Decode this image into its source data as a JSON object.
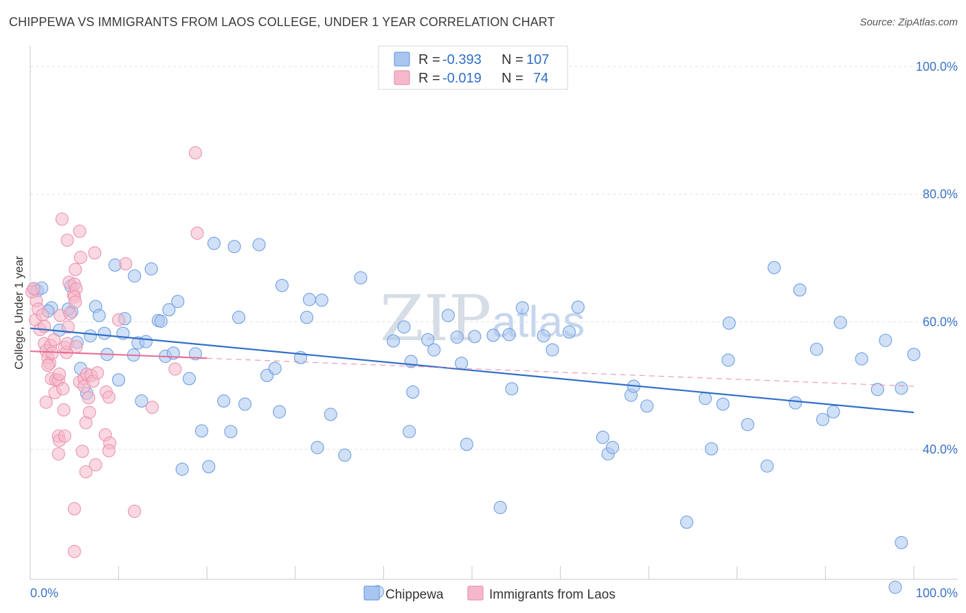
{
  "title": "CHIPPEWA VS IMMIGRANTS FROM LAOS COLLEGE, UNDER 1 YEAR CORRELATION CHART",
  "source": "Source: ZipAtlas.com",
  "watermark": {
    "zip": "ZIP",
    "atlas": "atlas"
  },
  "legend": {
    "rows": [
      {
        "r_label": "R =",
        "r_value": "-0.393",
        "n_label": "N =",
        "n_value": "107",
        "color": "#a9c6f0"
      },
      {
        "r_label": "R =",
        "r_value": "-0.019",
        "n_label": "N =",
        "n_value": "74",
        "color": "#f5b8cb"
      }
    ]
  },
  "bottom_legend": [
    {
      "label": "Chippewa",
      "color": "#a9c6f0"
    },
    {
      "label": "Immigrants from Laos",
      "color": "#f5b8cb"
    }
  ],
  "chart_data": {
    "type": "scatter",
    "title": "CHIPPEWA VS IMMIGRANTS FROM LAOS COLLEGE, UNDER 1 YEAR CORRELATION CHART",
    "xlabel": "",
    "ylabel": "College, Under 1 year",
    "xlim": [
      0,
      100
    ],
    "ylim": [
      12,
      104
    ],
    "x_tick_labels": [
      "0.0%",
      "100.0%"
    ],
    "y_ticks": [
      40,
      60,
      80,
      100
    ],
    "y_tick_labels": [
      "40.0%",
      "60.0%",
      "80.0%",
      "100.0%"
    ],
    "grid": "horizontal dashed",
    "legend_position": "top-center",
    "series": [
      {
        "name": "Chippewa",
        "color": "#a9c6f0",
        "stroke": "#6f9fe0",
        "trend": {
          "x": [
            0,
            100
          ],
          "y": [
            59.0,
            45.8
          ],
          "color": "#2f6ec8"
        },
        "points": [
          [
            0.4,
            65.2
          ],
          [
            0.8,
            64.9
          ],
          [
            1.3,
            65.3
          ],
          [
            4.6,
            65.6
          ],
          [
            2.4,
            62.2
          ],
          [
            2.0,
            61.7
          ],
          [
            4.7,
            61.6
          ],
          [
            4.3,
            62.0
          ],
          [
            3.3,
            58.7
          ],
          [
            5.3,
            56.8
          ],
          [
            5.7,
            52.7
          ],
          [
            6.4,
            48.8
          ],
          [
            6.8,
            57.8
          ],
          [
            7.4,
            62.4
          ],
          [
            7.8,
            61.0
          ],
          [
            8.4,
            58.2
          ],
          [
            8.7,
            54.9
          ],
          [
            9.6,
            68.9
          ],
          [
            10.0,
            50.9
          ],
          [
            10.5,
            58.2
          ],
          [
            10.7,
            60.5
          ],
          [
            11.7,
            54.8
          ],
          [
            11.8,
            67.2
          ],
          [
            12.2,
            56.7
          ],
          [
            12.6,
            47.6
          ],
          [
            13.1,
            56.9
          ],
          [
            13.7,
            68.3
          ],
          [
            14.5,
            60.2
          ],
          [
            14.8,
            60.1
          ],
          [
            15.3,
            54.6
          ],
          [
            15.7,
            61.9
          ],
          [
            16.2,
            55.1
          ],
          [
            16.7,
            63.2
          ],
          [
            17.2,
            36.9
          ],
          [
            18.0,
            51.1
          ],
          [
            18.7,
            55.0
          ],
          [
            19.4,
            42.9
          ],
          [
            20.2,
            37.3
          ],
          [
            20.8,
            72.3
          ],
          [
            21.9,
            47.6
          ],
          [
            22.7,
            42.8
          ],
          [
            23.1,
            71.8
          ],
          [
            23.6,
            60.7
          ],
          [
            24.3,
            47.1
          ],
          [
            25.9,
            72.1
          ],
          [
            26.8,
            51.6
          ],
          [
            27.7,
            52.7
          ],
          [
            28.2,
            45.9
          ],
          [
            28.5,
            65.7
          ],
          [
            30.6,
            54.4
          ],
          [
            31.3,
            60.7
          ],
          [
            31.6,
            63.5
          ],
          [
            32.5,
            40.3
          ],
          [
            33.0,
            63.4
          ],
          [
            34.0,
            45.5
          ],
          [
            35.6,
            39.1
          ],
          [
            37.4,
            66.9
          ],
          [
            39.3,
            17.7
          ],
          [
            41.1,
            57.0
          ],
          [
            42.3,
            59.2
          ],
          [
            42.9,
            42.8
          ],
          [
            43.1,
            53.8
          ],
          [
            43.3,
            49.0
          ],
          [
            45.0,
            57.2
          ],
          [
            45.7,
            55.6
          ],
          [
            47.3,
            61.0
          ],
          [
            48.3,
            57.6
          ],
          [
            48.8,
            53.5
          ],
          [
            49.4,
            40.8
          ],
          [
            50.3,
            57.7
          ],
          [
            52.4,
            57.9
          ],
          [
            53.2,
            30.9
          ],
          [
            54.2,
            58.0
          ],
          [
            54.5,
            49.5
          ],
          [
            55.7,
            62.2
          ],
          [
            58.1,
            57.8
          ],
          [
            59.1,
            55.6
          ],
          [
            61.0,
            58.4
          ],
          [
            62.0,
            62.3
          ],
          [
            64.8,
            41.9
          ],
          [
            65.4,
            39.3
          ],
          [
            65.9,
            40.3
          ],
          [
            68.0,
            48.5
          ],
          [
            68.3,
            49.9
          ],
          [
            69.8,
            46.8
          ],
          [
            74.3,
            28.6
          ],
          [
            76.4,
            48.0
          ],
          [
            77.1,
            40.1
          ],
          [
            78.4,
            47.1
          ],
          [
            79.0,
            54.0
          ],
          [
            79.1,
            59.8
          ],
          [
            81.2,
            43.9
          ],
          [
            83.4,
            37.4
          ],
          [
            84.2,
            68.5
          ],
          [
            86.6,
            47.3
          ],
          [
            87.1,
            65.0
          ],
          [
            89.0,
            55.7
          ],
          [
            89.7,
            44.7
          ],
          [
            90.9,
            45.9
          ],
          [
            91.7,
            59.9
          ],
          [
            94.1,
            54.2
          ],
          [
            95.9,
            49.4
          ],
          [
            96.8,
            57.1
          ],
          [
            98.6,
            25.4
          ],
          [
            98.6,
            49.6
          ],
          [
            97.9,
            18.4
          ],
          [
            100.0,
            54.9
          ]
        ]
      },
      {
        "name": "Immigrants from Laos",
        "color": "#f5b8cb",
        "stroke": "#e993ae",
        "trend": {
          "x": [
            0,
            20
          ],
          "y": [
            55.4,
            54.3
          ],
          "dashed_to": [
            100,
            49.9
          ],
          "color": "#e86f96"
        },
        "points": [
          [
            0.2,
            64.7
          ],
          [
            0.4,
            65.2
          ],
          [
            0.7,
            63.3
          ],
          [
            0.6,
            60.3
          ],
          [
            0.9,
            62.0
          ],
          [
            1.1,
            58.8
          ],
          [
            1.4,
            61.1
          ],
          [
            1.6,
            59.3
          ],
          [
            1.6,
            56.6
          ],
          [
            1.8,
            55.5
          ],
          [
            2.0,
            54.4
          ],
          [
            2.2,
            53.5
          ],
          [
            2.3,
            56.3
          ],
          [
            2.4,
            51.1
          ],
          [
            2.5,
            55.1
          ],
          [
            2.7,
            57.2
          ],
          [
            2.8,
            48.9
          ],
          [
            2.9,
            50.9
          ],
          [
            3.2,
            42.1
          ],
          [
            3.2,
            50.9
          ],
          [
            3.2,
            39.3
          ],
          [
            3.3,
            41.4
          ],
          [
            3.4,
            61.0
          ],
          [
            3.6,
            76.1
          ],
          [
            3.7,
            49.5
          ],
          [
            3.8,
            46.2
          ],
          [
            3.9,
            42.1
          ],
          [
            3.9,
            56.0
          ],
          [
            4.1,
            55.2
          ],
          [
            4.2,
            56.6
          ],
          [
            4.4,
            66.2
          ],
          [
            4.2,
            72.8
          ],
          [
            4.3,
            59.2
          ],
          [
            4.5,
            61.3
          ],
          [
            4.9,
            64.3
          ],
          [
            5.1,
            68.2
          ],
          [
            5.0,
            65.9
          ],
          [
            5.2,
            65.2
          ],
          [
            5.0,
            63.9
          ],
          [
            5.0,
            30.7
          ],
          [
            5.0,
            24.0
          ],
          [
            5.1,
            63.1
          ],
          [
            5.2,
            56.1
          ],
          [
            5.6,
            50.6
          ],
          [
            5.6,
            74.2
          ],
          [
            5.7,
            70.1
          ],
          [
            5.9,
            39.7
          ],
          [
            6.1,
            51.1
          ],
          [
            6.1,
            49.9
          ],
          [
            6.4,
            51.8
          ],
          [
            6.3,
            44.2
          ],
          [
            6.3,
            36.5
          ],
          [
            6.7,
            45.8
          ],
          [
            6.9,
            51.6
          ],
          [
            7.1,
            50.7
          ],
          [
            7.3,
            70.8
          ],
          [
            7.4,
            37.6
          ],
          [
            7.6,
            52.0
          ],
          [
            8.6,
            49.0
          ],
          [
            8.5,
            42.3
          ],
          [
            8.9,
            48.2
          ],
          [
            9.0,
            41.0
          ],
          [
            8.9,
            39.8
          ],
          [
            10.0,
            60.3
          ],
          [
            10.8,
            69.1
          ],
          [
            11.8,
            30.3
          ],
          [
            13.8,
            46.6
          ],
          [
            16.4,
            52.6
          ],
          [
            18.7,
            86.5
          ],
          [
            18.9,
            73.9
          ],
          [
            1.8,
            47.4
          ],
          [
            3.3,
            51.8
          ],
          [
            2.0,
            53.2
          ],
          [
            6.6,
            48.1
          ]
        ]
      }
    ]
  }
}
